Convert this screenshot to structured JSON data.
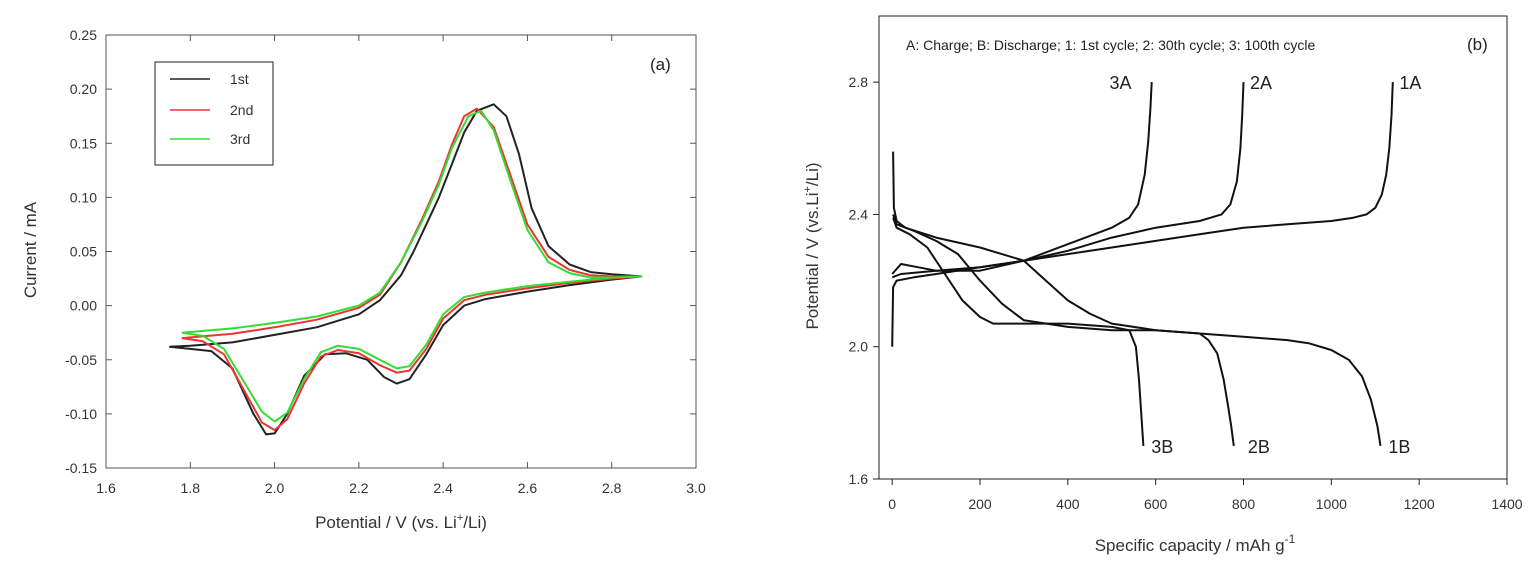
{
  "chart_data": [
    {
      "id": "a",
      "type": "line",
      "panel_label": "(a)",
      "xlabel_pre": "Potential / V (vs. Li",
      "xlabel_sup": "+",
      "xlabel_post": "/Li)",
      "ylabel": "Current / mA",
      "xlim": [
        1.6,
        3.0
      ],
      "ylim": [
        -0.15,
        0.25
      ],
      "xticks": [
        1.6,
        1.8,
        2.0,
        2.2,
        2.4,
        2.6,
        2.8,
        3.0
      ],
      "xtick_labels": [
        "1.6",
        "1.8",
        "2.0",
        "2.2",
        "2.4",
        "2.6",
        "2.8",
        "3.0"
      ],
      "yticks": [
        -0.15,
        -0.1,
        -0.05,
        0.0,
        0.05,
        0.1,
        0.15,
        0.2,
        0.25
      ],
      "ytick_labels": [
        "-0.15",
        "-0.10",
        "-0.05",
        "0.00",
        "0.05",
        "0.10",
        "0.15",
        "0.20",
        "0.25"
      ],
      "legend_position": "top-left",
      "series": [
        {
          "name": "1st",
          "color": "#222222",
          "points": [
            [
              1.75,
              -0.038
            ],
            [
              1.8,
              -0.04
            ],
            [
              1.85,
              -0.042
            ],
            [
              1.9,
              -0.058
            ],
            [
              1.95,
              -0.1
            ],
            [
              1.98,
              -0.119
            ],
            [
              2.0,
              -0.118
            ],
            [
              2.03,
              -0.1
            ],
            [
              2.07,
              -0.065
            ],
            [
              2.12,
              -0.045
            ],
            [
              2.17,
              -0.044
            ],
            [
              2.22,
              -0.05
            ],
            [
              2.26,
              -0.066
            ],
            [
              2.29,
              -0.072
            ],
            [
              2.32,
              -0.068
            ],
            [
              2.36,
              -0.045
            ],
            [
              2.4,
              -0.018
            ],
            [
              2.45,
              0.0
            ],
            [
              2.5,
              0.006
            ],
            [
              2.6,
              0.013
            ],
            [
              2.7,
              0.019
            ],
            [
              2.8,
              0.024
            ],
            [
              2.87,
              0.027
            ],
            [
              2.8,
              0.029
            ],
            [
              2.75,
              0.031
            ],
            [
              2.7,
              0.038
            ],
            [
              2.65,
              0.055
            ],
            [
              2.61,
              0.09
            ],
            [
              2.58,
              0.14
            ],
            [
              2.55,
              0.175
            ],
            [
              2.52,
              0.186
            ],
            [
              2.48,
              0.18
            ],
            [
              2.45,
              0.16
            ],
            [
              2.42,
              0.13
            ],
            [
              2.39,
              0.1
            ],
            [
              2.36,
              0.075
            ],
            [
              2.33,
              0.05
            ],
            [
              2.3,
              0.028
            ],
            [
              2.25,
              0.005
            ],
            [
              2.2,
              -0.008
            ],
            [
              2.1,
              -0.02
            ],
            [
              2.0,
              -0.027
            ],
            [
              1.9,
              -0.034
            ],
            [
              1.8,
              -0.037
            ],
            [
              1.75,
              -0.038
            ]
          ]
        },
        {
          "name": "2nd",
          "color": "#ee3333",
          "points": [
            [
              1.78,
              -0.03
            ],
            [
              1.83,
              -0.033
            ],
            [
              1.88,
              -0.045
            ],
            [
              1.93,
              -0.08
            ],
            [
              1.97,
              -0.108
            ],
            [
              2.0,
              -0.115
            ],
            [
              2.03,
              -0.105
            ],
            [
              2.07,
              -0.072
            ],
            [
              2.11,
              -0.047
            ],
            [
              2.15,
              -0.041
            ],
            [
              2.2,
              -0.044
            ],
            [
              2.25,
              -0.055
            ],
            [
              2.29,
              -0.062
            ],
            [
              2.32,
              -0.06
            ],
            [
              2.36,
              -0.04
            ],
            [
              2.4,
              -0.012
            ],
            [
              2.45,
              0.005
            ],
            [
              2.5,
              0.01
            ],
            [
              2.6,
              0.016
            ],
            [
              2.7,
              0.021
            ],
            [
              2.8,
              0.025
            ],
            [
              2.87,
              0.027
            ],
            [
              2.8,
              0.027
            ],
            [
              2.75,
              0.028
            ],
            [
              2.7,
              0.033
            ],
            [
              2.65,
              0.045
            ],
            [
              2.6,
              0.075
            ],
            [
              2.56,
              0.12
            ],
            [
              2.52,
              0.165
            ],
            [
              2.48,
              0.182
            ],
            [
              2.45,
              0.175
            ],
            [
              2.42,
              0.148
            ],
            [
              2.39,
              0.115
            ],
            [
              2.35,
              0.08
            ],
            [
              2.3,
              0.04
            ],
            [
              2.25,
              0.01
            ],
            [
              2.2,
              -0.002
            ],
            [
              2.1,
              -0.013
            ],
            [
              2.0,
              -0.02
            ],
            [
              1.9,
              -0.026
            ],
            [
              1.78,
              -0.03
            ]
          ]
        },
        {
          "name": "3rd",
          "color": "#33dd33",
          "points": [
            [
              1.78,
              -0.025
            ],
            [
              1.83,
              -0.028
            ],
            [
              1.88,
              -0.04
            ],
            [
              1.93,
              -0.072
            ],
            [
              1.97,
              -0.098
            ],
            [
              2.0,
              -0.107
            ],
            [
              2.03,
              -0.099
            ],
            [
              2.07,
              -0.068
            ],
            [
              2.11,
              -0.043
            ],
            [
              2.15,
              -0.037
            ],
            [
              2.2,
              -0.04
            ],
            [
              2.25,
              -0.05
            ],
            [
              2.29,
              -0.058
            ],
            [
              2.32,
              -0.056
            ],
            [
              2.36,
              -0.036
            ],
            [
              2.4,
              -0.008
            ],
            [
              2.45,
              0.008
            ],
            [
              2.5,
              0.012
            ],
            [
              2.6,
              0.018
            ],
            [
              2.7,
              0.022
            ],
            [
              2.8,
              0.026
            ],
            [
              2.87,
              0.027
            ],
            [
              2.8,
              0.026
            ],
            [
              2.75,
              0.026
            ],
            [
              2.7,
              0.03
            ],
            [
              2.65,
              0.04
            ],
            [
              2.6,
              0.07
            ],
            [
              2.56,
              0.115
            ],
            [
              2.52,
              0.162
            ],
            [
              2.49,
              0.18
            ],
            [
              2.46,
              0.175
            ],
            [
              2.42,
              0.145
            ],
            [
              2.39,
              0.112
            ],
            [
              2.35,
              0.078
            ],
            [
              2.3,
              0.04
            ],
            [
              2.25,
              0.012
            ],
            [
              2.2,
              0.0
            ],
            [
              2.1,
              -0.01
            ],
            [
              2.0,
              -0.016
            ],
            [
              1.9,
              -0.021
            ],
            [
              1.78,
              -0.025
            ]
          ]
        }
      ]
    },
    {
      "id": "b",
      "type": "line",
      "panel_label": "(b)",
      "annotation": "A: Charge; B: Discharge; 1: 1st cycle; 2: 30th cycle; 3: 100th cycle",
      "xlabel_pre": "Specific capacity / mAh g",
      "xlabel_sup": "-1",
      "ylabel_pre": "Potential / V (vs.Li",
      "ylabel_sup": "+",
      "ylabel_post": "/Li)",
      "xlim": [
        -30,
        1400
      ],
      "ylim": [
        1.6,
        3.0
      ],
      "xticks": [
        0,
        200,
        400,
        600,
        800,
        1000,
        1200,
        1400
      ],
      "xtick_labels": [
        "0",
        "200",
        "400",
        "600",
        "800",
        "1000",
        "1200",
        "1400"
      ],
      "yticks": [
        1.6,
        2.0,
        2.4,
        2.8
      ],
      "ytick_labels": [
        "1.6",
        "2.0",
        "2.4",
        "2.8"
      ],
      "series": [
        {
          "name": "1A",
          "label": "1A",
          "label_at": [
            1180,
            2.8
          ],
          "color": "#111111",
          "points": [
            [
              0,
              2.0
            ],
            [
              2,
              2.18
            ],
            [
              10,
              2.2
            ],
            [
              50,
              2.21
            ],
            [
              100,
              2.22
            ],
            [
              200,
              2.24
            ],
            [
              300,
              2.26
            ],
            [
              400,
              2.28
            ],
            [
              500,
              2.3
            ],
            [
              600,
              2.32
            ],
            [
              700,
              2.34
            ],
            [
              800,
              2.36
            ],
            [
              900,
              2.37
            ],
            [
              1000,
              2.38
            ],
            [
              1050,
              2.39
            ],
            [
              1080,
              2.4
            ],
            [
              1100,
              2.42
            ],
            [
              1115,
              2.46
            ],
            [
              1125,
              2.52
            ],
            [
              1132,
              2.6
            ],
            [
              1137,
              2.7
            ],
            [
              1140,
              2.8
            ]
          ]
        },
        {
          "name": "1B",
          "label": "1B",
          "label_at": [
            1155,
            1.7
          ],
          "color": "#111111",
          "points": [
            [
              2,
              2.59
            ],
            [
              4,
              2.42
            ],
            [
              10,
              2.38
            ],
            [
              30,
              2.36
            ],
            [
              100,
              2.33
            ],
            [
              200,
              2.3
            ],
            [
              300,
              2.26
            ],
            [
              350,
              2.2
            ],
            [
              400,
              2.14
            ],
            [
              450,
              2.1
            ],
            [
              500,
              2.07
            ],
            [
              600,
              2.05
            ],
            [
              700,
              2.04
            ],
            [
              800,
              2.03
            ],
            [
              900,
              2.02
            ],
            [
              950,
              2.01
            ],
            [
              1000,
              1.99
            ],
            [
              1040,
              1.96
            ],
            [
              1070,
              1.91
            ],
            [
              1090,
              1.84
            ],
            [
              1105,
              1.76
            ],
            [
              1112,
              1.7
            ]
          ]
        },
        {
          "name": "2A",
          "label": "2A",
          "label_at": [
            840,
            2.8
          ],
          "color": "#111111",
          "points": [
            [
              0,
              2.21
            ],
            [
              20,
              2.22
            ],
            [
              100,
              2.23
            ],
            [
              200,
              2.24
            ],
            [
              300,
              2.26
            ],
            [
              400,
              2.29
            ],
            [
              500,
              2.33
            ],
            [
              600,
              2.36
            ],
            [
              700,
              2.38
            ],
            [
              750,
              2.4
            ],
            [
              770,
              2.43
            ],
            [
              785,
              2.5
            ],
            [
              793,
              2.6
            ],
            [
              797,
              2.7
            ],
            [
              800,
              2.8
            ]
          ]
        },
        {
          "name": "2B",
          "label": "2B",
          "label_at": [
            835,
            1.7
          ],
          "color": "#111111",
          "points": [
            [
              2,
              2.4
            ],
            [
              10,
              2.37
            ],
            [
              50,
              2.35
            ],
            [
              100,
              2.32
            ],
            [
              150,
              2.28
            ],
            [
              200,
              2.2
            ],
            [
              250,
              2.13
            ],
            [
              300,
              2.08
            ],
            [
              400,
              2.06
            ],
            [
              500,
              2.05
            ],
            [
              600,
              2.05
            ],
            [
              700,
              2.04
            ],
            [
              720,
              2.02
            ],
            [
              740,
              1.98
            ],
            [
              755,
              1.9
            ],
            [
              765,
              1.82
            ],
            [
              772,
              1.76
            ],
            [
              778,
              1.7
            ]
          ]
        },
        {
          "name": "3A",
          "label": "3A",
          "label_at": [
            520,
            2.8
          ],
          "color": "#111111",
          "points": [
            [
              0,
              2.22
            ],
            [
              20,
              2.25
            ],
            [
              60,
              2.24
            ],
            [
              100,
              2.23
            ],
            [
              200,
              2.23
            ],
            [
              300,
              2.26
            ],
            [
              400,
              2.31
            ],
            [
              500,
              2.36
            ],
            [
              540,
              2.39
            ],
            [
              560,
              2.43
            ],
            [
              575,
              2.52
            ],
            [
              583,
              2.62
            ],
            [
              588,
              2.72
            ],
            [
              591,
              2.8
            ]
          ]
        },
        {
          "name": "3B",
          "label": "3B",
          "label_at": [
            615,
            1.7
          ],
          "color": "#111111",
          "points": [
            [
              2,
              2.39
            ],
            [
              10,
              2.36
            ],
            [
              40,
              2.34
            ],
            [
              80,
              2.3
            ],
            [
              120,
              2.22
            ],
            [
              160,
              2.14
            ],
            [
              200,
              2.09
            ],
            [
              230,
              2.07
            ],
            [
              260,
              2.07
            ],
            [
              400,
              2.07
            ],
            [
              500,
              2.06
            ],
            [
              540,
              2.05
            ],
            [
              555,
              2.0
            ],
            [
              562,
              1.9
            ],
            [
              567,
              1.8
            ],
            [
              572,
              1.7
            ]
          ]
        }
      ]
    }
  ]
}
